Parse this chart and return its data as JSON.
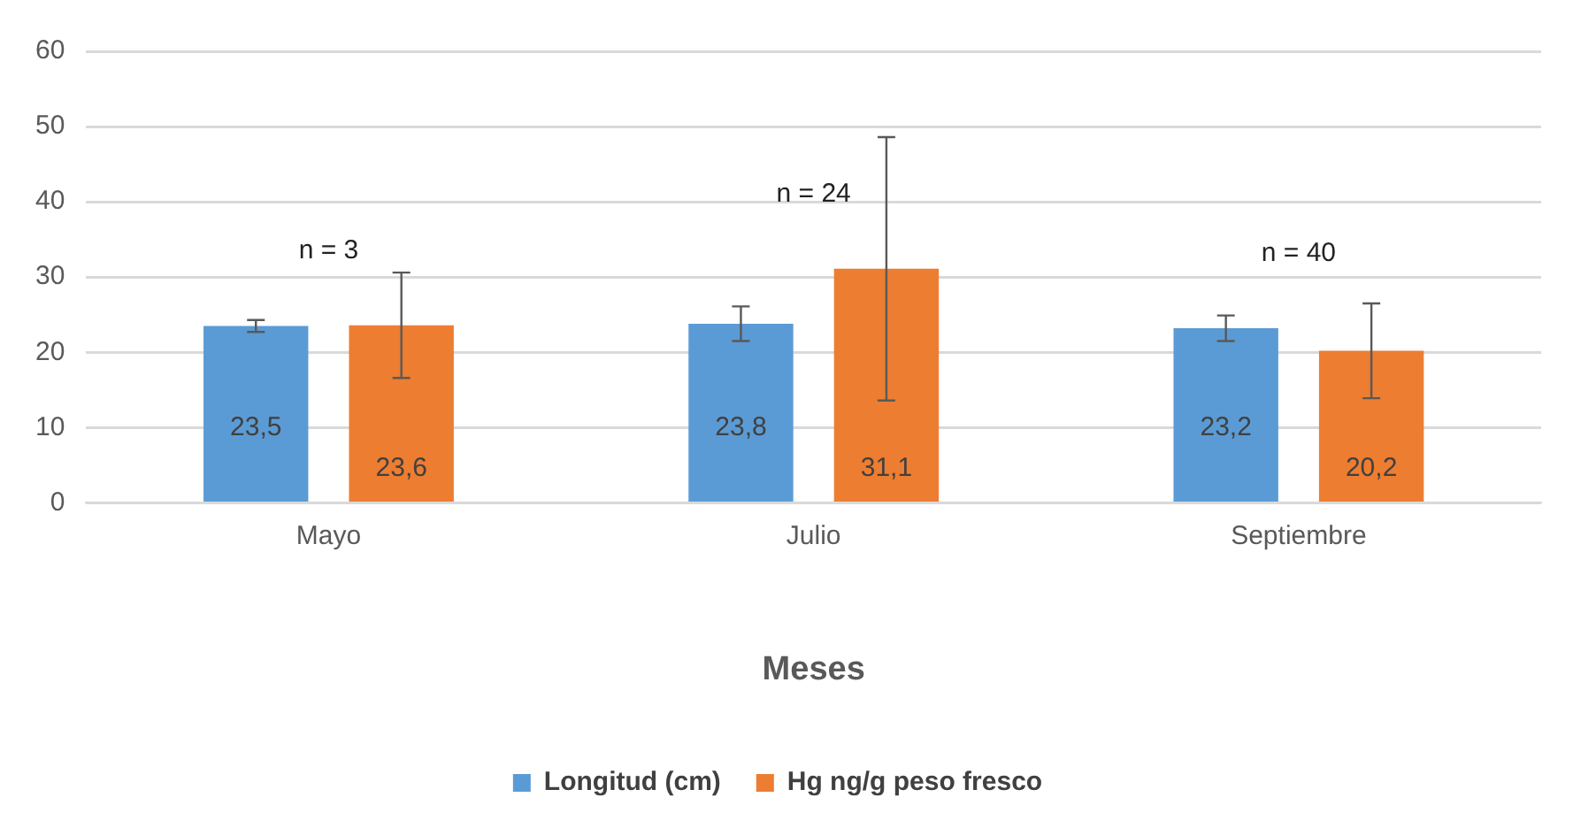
{
  "chart_data": {
    "type": "bar",
    "xlabel": "Meses",
    "categories": [
      "Mayo",
      "Julio",
      "Septiembre"
    ],
    "series": [
      {
        "name": "Longitud (cm)",
        "color": "#5b9bd5",
        "values": [
          23.5,
          23.8,
          23.2
        ],
        "errors": [
          0.8,
          2.3,
          1.7
        ],
        "value_labels": [
          "23,5",
          "23,8",
          "23,2"
        ]
      },
      {
        "name": "Hg ng/g peso fresco",
        "color": "#ed7d31",
        "values": [
          23.6,
          31.1,
          20.2
        ],
        "errors": [
          7,
          17.5,
          6.3
        ],
        "value_labels": [
          "23,6",
          "31,1",
          "20,2"
        ]
      }
    ],
    "annotations": [
      "n = 3",
      "n = 24",
      "n = 40"
    ],
    "ylim": [
      0,
      60
    ],
    "yticks": [
      0,
      10,
      20,
      30,
      40,
      50,
      60
    ],
    "grid": "y",
    "legend": "bottom"
  }
}
